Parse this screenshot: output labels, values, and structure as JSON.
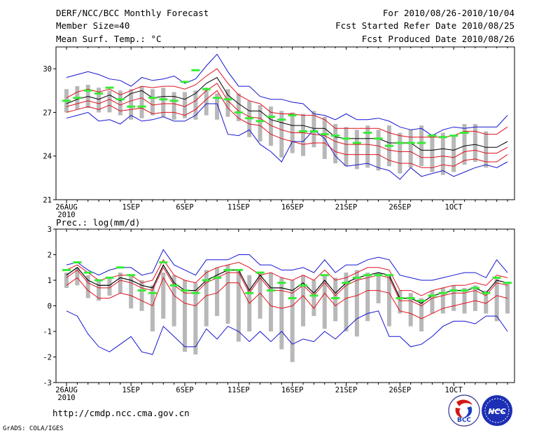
{
  "header": {
    "title": "DERF/NCC/BCC Monthly Forecast",
    "member_size": "Member Size=40",
    "variable": "Mean Surf. Temp.: °C",
    "forecast_for": "For 2010/08/26-2010/10/04",
    "started_refer": "Fcst Started Refer Date 2010/08/25",
    "produced": "Fcst Produced Date 2010/08/26"
  },
  "footer": {
    "url": "http://cmdp.ncc.cma.gov.cn",
    "credit": "GrADS: COLA/IGES",
    "logo_bcc": "BCC",
    "logo_ncc": "NCC"
  },
  "colors": {
    "ensemble_mean": "#000000",
    "spread": "#e0101e",
    "envelope": "#1515d0",
    "climatology": "#b8b8b8",
    "observed": "#33ee33"
  },
  "chart_data": [
    {
      "type": "line",
      "title": "Mean Surf. Temp.: °C",
      "ylim": [
        21,
        31.5
      ],
      "yticks": [
        21,
        24,
        27,
        30
      ],
      "xticks": [
        {
          "day": 0,
          "label": "26AUG",
          "sub": "2010"
        },
        {
          "day": 6,
          "label": "1SEP"
        },
        {
          "day": 11,
          "label": "6SEP"
        },
        {
          "day": 16,
          "label": "11SEP"
        },
        {
          "day": 21,
          "label": "16SEP"
        },
        {
          "day": 26,
          "label": "21SEP"
        },
        {
          "day": 31,
          "label": "26SEP"
        },
        {
          "day": 36,
          "label": "1OCT"
        }
      ],
      "series": [
        {
          "name": "upper",
          "role": "envelope",
          "values": [
            29.4,
            29.6,
            29.8,
            29.6,
            29.3,
            29.2,
            28.8,
            29.4,
            29.2,
            29.3,
            29.5,
            29.0,
            29.3,
            30.2,
            31.0,
            29.8,
            28.8,
            28.8,
            28.1,
            27.9,
            27.9,
            27.7,
            27.6,
            26.9,
            26.8,
            26.5,
            26.9,
            26.5,
            26.5,
            26.6,
            26.4,
            26.0,
            25.8,
            25.9,
            25.4,
            25.8,
            26.0,
            25.9,
            26.0,
            26.0,
            26.0,
            26.8
          ]
        },
        {
          "name": "upper spread",
          "role": "spread",
          "values": [
            28.0,
            28.4,
            28.6,
            28.4,
            28.6,
            28.2,
            28.5,
            28.8,
            28.7,
            28.8,
            28.8,
            28.6,
            28.9,
            29.5,
            30.0,
            29.0,
            28.2,
            27.8,
            27.6,
            27.0,
            26.9,
            26.9,
            26.8,
            26.8,
            26.5,
            25.9,
            25.9,
            25.9,
            25.9,
            25.9,
            25.6,
            25.4,
            25.3,
            25.3,
            25.3,
            25.3,
            25.4,
            25.7,
            25.7,
            25.5,
            25.5,
            26.0
          ]
        },
        {
          "name": "ensemble mean",
          "role": "mean",
          "values": [
            27.6,
            27.9,
            28.1,
            27.9,
            28.2,
            27.8,
            28.3,
            28.5,
            28.0,
            28.1,
            28.1,
            27.9,
            28.3,
            29.0,
            29.4,
            28.2,
            27.6,
            27.1,
            27.1,
            26.5,
            26.3,
            26.1,
            26.1,
            25.9,
            25.9,
            25.3,
            25.2,
            25.2,
            25.2,
            25.2,
            24.9,
            24.9,
            24.9,
            24.4,
            24.4,
            24.5,
            24.4,
            24.7,
            24.8,
            24.6,
            24.6,
            25.0
          ]
        },
        {
          "name": "lower spread",
          "role": "spread",
          "values": [
            27.4,
            27.6,
            27.8,
            27.6,
            27.9,
            27.5,
            27.8,
            28.0,
            27.5,
            27.6,
            27.6,
            27.4,
            27.8,
            28.5,
            29.0,
            27.8,
            27.1,
            26.7,
            26.6,
            26.1,
            25.8,
            25.6,
            25.6,
            25.5,
            25.4,
            25.0,
            24.8,
            24.8,
            24.8,
            24.7,
            24.4,
            24.3,
            24.3,
            23.9,
            23.9,
            24.0,
            23.9,
            24.3,
            24.4,
            24.2,
            24.2,
            24.6
          ]
        },
        {
          "name": "lower",
          "role": "spread",
          "values": [
            27.0,
            27.2,
            27.4,
            27.2,
            27.5,
            27.1,
            27.2,
            27.3,
            26.9,
            27.0,
            27.0,
            26.8,
            27.2,
            27.9,
            28.5,
            27.3,
            26.6,
            26.2,
            26.1,
            25.5,
            25.2,
            25.0,
            24.8,
            24.9,
            24.9,
            24.3,
            24.1,
            24.1,
            24.1,
            24.1,
            23.7,
            23.5,
            23.5,
            23.2,
            23.2,
            23.4,
            23.3,
            23.7,
            23.8,
            23.6,
            23.6,
            24.1
          ]
        },
        {
          "name": "minimum",
          "role": "envelope",
          "values": [
            26.6,
            26.8,
            27.0,
            26.4,
            26.5,
            26.2,
            26.8,
            26.4,
            26.5,
            26.7,
            26.4,
            26.4,
            26.8,
            27.6,
            27.6,
            25.5,
            25.4,
            25.8,
            24.8,
            24.3,
            23.6,
            25.0,
            25.0,
            25.8,
            25.2,
            24.0,
            23.3,
            23.4,
            23.5,
            23.2,
            23.0,
            22.4,
            23.2,
            22.6,
            22.8,
            23.0,
            22.6,
            22.9,
            23.2,
            23.4,
            23.2,
            23.6
          ]
        }
      ],
      "observed": [
        27.8,
        28.0,
        28.5,
        28.3,
        28.7,
        27.9,
        27.4,
        27.4,
        28.0,
        27.9,
        27.8,
        29.1,
        29.9,
        28.6,
        28.0,
        27.9,
        27.0,
        26.6,
        26.4,
        26.7,
        26.5,
        26.8,
        25.7,
        25.7,
        25.5,
        25.4,
        25.2,
        24.9,
        25.6,
        25.2,
        24.7,
        24.9,
        24.9,
        24.9,
        25.4,
        25.3,
        25.4,
        25.6
      ],
      "climatology": [
        [
          27.0,
          28.6
        ],
        [
          27.2,
          28.8
        ],
        [
          27.3,
          28.9
        ],
        [
          27.0,
          28.7
        ],
        [
          27.0,
          28.5
        ],
        [
          26.8,
          28.5
        ],
        [
          26.5,
          28.6
        ],
        [
          26.6,
          28.8
        ],
        [
          26.8,
          28.6
        ],
        [
          26.7,
          28.7
        ],
        [
          26.5,
          28.4
        ],
        [
          26.6,
          28.4
        ],
        [
          26.5,
          28.5
        ],
        [
          26.8,
          28.7
        ],
        [
          26.5,
          28.3
        ],
        [
          26.7,
          28.6
        ],
        [
          26.4,
          28.3
        ],
        [
          25.3,
          27.8
        ],
        [
          25.0,
          27.5
        ],
        [
          24.7,
          27.4
        ],
        [
          23.9,
          27.1
        ],
        [
          24.2,
          27.0
        ],
        [
          24.0,
          26.9
        ],
        [
          24.6,
          27.1
        ],
        [
          23.8,
          26.7
        ],
        [
          23.5,
          26.2
        ],
        [
          23.3,
          26.0
        ],
        [
          23.1,
          25.8
        ],
        [
          23.2,
          26.1
        ],
        [
          23.0,
          25.8
        ],
        [
          23.3,
          26.1
        ],
        [
          22.8,
          25.6
        ],
        [
          23.2,
          25.8
        ],
        [
          23.3,
          26.1
        ],
        [
          22.9,
          25.5
        ],
        [
          22.7,
          25.6
        ],
        [
          22.9,
          25.4
        ],
        [
          23.4,
          26.2
        ],
        [
          23.6,
          26.2
        ],
        [
          23.2,
          25.7
        ]
      ]
    },
    {
      "type": "line",
      "title": "Prec.: log(mm/d)",
      "ylim": [
        -3,
        3
      ],
      "yticks": [
        -3,
        -2,
        -1,
        0,
        1,
        2,
        3
      ],
      "xticks": [
        {
          "day": 0,
          "label": "26AUG",
          "sub": "2010"
        },
        {
          "day": 6,
          "label": "1SEP"
        },
        {
          "day": 11,
          "label": "6SEP"
        },
        {
          "day": 16,
          "label": "11SEP"
        },
        {
          "day": 21,
          "label": "16SEP"
        },
        {
          "day": 26,
          "label": "21SEP"
        },
        {
          "day": 31,
          "label": "26SEP"
        },
        {
          "day": 36,
          "label": "1OCT"
        }
      ],
      "series": [
        {
          "name": "upper",
          "role": "envelope",
          "values": [
            1.6,
            1.7,
            1.4,
            1.2,
            1.4,
            1.5,
            1.5,
            1.2,
            1.3,
            2.2,
            1.6,
            1.4,
            1.2,
            1.8,
            1.8,
            1.8,
            2.0,
            2.0,
            1.6,
            1.6,
            1.4,
            1.4,
            1.5,
            1.3,
            1.8,
            1.3,
            1.6,
            1.6,
            1.8,
            1.9,
            1.8,
            1.2,
            1.1,
            1.0,
            1.0,
            1.1,
            1.2,
            1.3,
            1.3,
            1.1,
            1.8,
            1.3
          ]
        },
        {
          "name": "upper spread",
          "role": "spread",
          "values": [
            1.4,
            1.6,
            1.3,
            1.0,
            1.1,
            1.2,
            1.2,
            0.9,
            1.0,
            1.8,
            1.2,
            1.0,
            0.9,
            1.3,
            1.5,
            1.6,
            1.7,
            1.5,
            1.2,
            1.3,
            1.1,
            1.0,
            1.2,
            1.0,
            1.4,
            1.0,
            1.1,
            1.3,
            1.5,
            1.5,
            1.4,
            0.6,
            0.6,
            0.4,
            0.6,
            0.7,
            0.8,
            0.8,
            0.9,
            0.8,
            1.2,
            1.1
          ]
        },
        {
          "name": "ensemble mean",
          "role": "mean",
          "values": [
            1.2,
            1.5,
            1.0,
            0.8,
            0.8,
            1.1,
            1.0,
            0.8,
            0.7,
            1.6,
            0.9,
            0.6,
            0.6,
            1.0,
            1.2,
            1.4,
            1.4,
            0.6,
            1.2,
            0.7,
            0.7,
            0.6,
            0.9,
            0.5,
            1.0,
            0.5,
            0.9,
            1.1,
            1.2,
            1.3,
            1.2,
            0.3,
            0.3,
            0.1,
            0.4,
            0.5,
            0.6,
            0.6,
            0.7,
            0.5,
            1.0,
            0.9
          ]
        },
        {
          "name": "lower spread",
          "role": "spread",
          "values": [
            1.1,
            1.4,
            0.9,
            0.7,
            0.7,
            1.0,
            0.9,
            0.7,
            0.6,
            1.5,
            0.8,
            0.5,
            0.5,
            0.9,
            1.1,
            1.3,
            1.3,
            0.5,
            1.1,
            0.6,
            0.6,
            0.5,
            0.8,
            0.4,
            0.9,
            0.4,
            0.8,
            1.0,
            1.1,
            1.2,
            1.1,
            0.2,
            0.2,
            0.0,
            0.3,
            0.4,
            0.5,
            0.5,
            0.6,
            0.4,
            0.9,
            0.8
          ]
        },
        {
          "name": "lower",
          "role": "spread",
          "values": [
            0.8,
            1.1,
            0.6,
            0.3,
            0.3,
            0.5,
            0.4,
            0.2,
            0.0,
            1.1,
            0.4,
            0.1,
            0.0,
            0.4,
            0.5,
            0.9,
            0.9,
            0.1,
            0.5,
            0.0,
            -0.1,
            0.0,
            0.4,
            -0.1,
            0.5,
            0.0,
            0.3,
            0.4,
            0.6,
            0.6,
            0.5,
            -0.2,
            -0.3,
            -0.5,
            -0.3,
            -0.1,
            0.0,
            0.1,
            0.2,
            0.1,
            0.4,
            0.3
          ]
        },
        {
          "name": "minimum",
          "role": "envelope",
          "values": [
            -0.2,
            -0.4,
            -1.1,
            -1.6,
            -1.8,
            -1.5,
            -1.2,
            -1.8,
            -1.9,
            -0.8,
            -1.2,
            -1.6,
            -1.6,
            -0.9,
            -1.3,
            -0.8,
            -1.0,
            -1.4,
            -1.0,
            -1.4,
            -1.0,
            -1.5,
            -1.3,
            -1.4,
            -1.0,
            -1.3,
            -0.9,
            -0.5,
            -0.3,
            -0.2,
            -1.2,
            -1.2,
            -1.6,
            -1.5,
            -1.2,
            -0.8,
            -0.6,
            -0.6,
            -0.7,
            -0.4,
            -0.4,
            -1.0
          ]
        },
        {
          "name": "mean line",
          "role": "mean",
          "values": [
            1.2,
            1.5,
            1.0,
            0.8,
            0.8,
            1.1,
            1.0,
            0.8,
            0.7,
            1.6,
            0.9,
            0.6,
            0.6,
            1.0,
            1.2,
            1.4,
            1.4,
            0.6,
            1.2,
            0.7,
            0.7,
            0.6,
            0.9,
            0.5,
            1.0,
            0.5,
            0.9,
            1.1,
            1.2,
            1.3,
            1.2,
            0.3,
            0.3,
            0.1,
            0.4,
            0.5,
            0.6,
            0.6,
            0.7,
            0.5,
            1.0,
            0.9
          ]
        }
      ],
      "observed": [
        1.4,
        1.7,
        1.3,
        1.0,
        1.1,
        1.5,
        1.2,
        0.6,
        0.5,
        1.7,
        0.8,
        0.6,
        0.5,
        1.0,
        1.1,
        1.4,
        1.4,
        0.5,
        1.3,
        0.6,
        0.9,
        0.3,
        0.8,
        0.4,
        1.2,
        0.3,
        0.9,
        1.1,
        1.2,
        1.2,
        1.2,
        0.3,
        0.3,
        0.2,
        0.4,
        0.5,
        0.6,
        0.6,
        0.7,
        0.5,
        1.1,
        0.9
      ],
      "climatology": [
        [
          0.7,
          1.3
        ],
        [
          0.8,
          1.5
        ],
        [
          0.3,
          1.2
        ],
        [
          0.2,
          1.0
        ],
        [
          0.4,
          1.1
        ],
        [
          0.5,
          1.3
        ],
        [
          -0.1,
          1.2
        ],
        [
          -0.2,
          1.0
        ],
        [
          -1.0,
          0.8
        ],
        [
          -0.5,
          1.3
        ],
        [
          -0.8,
          1.2
        ],
        [
          -1.8,
          1.0
        ],
        [
          -1.9,
          0.9
        ],
        [
          -0.8,
          1.4
        ],
        [
          -0.4,
          1.5
        ],
        [
          -0.7,
          1.6
        ],
        [
          -1.4,
          1.4
        ],
        [
          -1.0,
          1.2
        ],
        [
          -0.5,
          1.3
        ],
        [
          -1.0,
          1.3
        ],
        [
          -1.7,
          1.1
        ],
        [
          -2.2,
          1.0
        ],
        [
          -0.8,
          1.2
        ],
        [
          -0.4,
          1.0
        ],
        [
          -0.9,
          1.2
        ],
        [
          -0.6,
          1.1
        ],
        [
          -1.0,
          1.3
        ],
        [
          -1.2,
          1.4
        ],
        [
          -0.6,
          1.3
        ],
        [
          0.1,
          1.3
        ],
        [
          -0.8,
          1.2
        ],
        [
          -0.3,
          0.6
        ],
        [
          -0.8,
          0.5
        ],
        [
          -1.0,
          0.3
        ],
        [
          -0.3,
          0.6
        ],
        [
          -0.3,
          0.7
        ],
        [
          -0.2,
          0.8
        ],
        [
          -0.3,
          0.7
        ],
        [
          -0.2,
          0.8
        ],
        [
          -0.3,
          0.6
        ],
        [
          -0.6,
          1.1
        ],
        [
          -0.3,
          0.9
        ]
      ]
    }
  ]
}
